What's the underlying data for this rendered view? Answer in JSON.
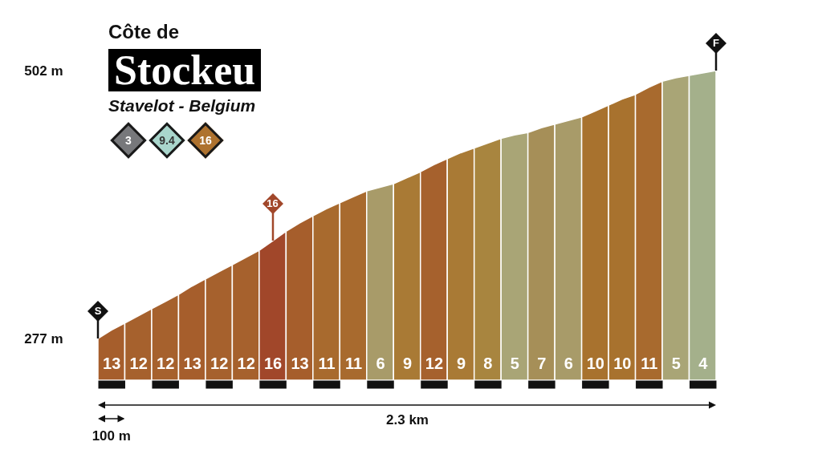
{
  "chart_data": {
    "type": "area",
    "title": "Côte de\nStockeu",
    "subtitle": "Stavelot - Belgium",
    "xlabel": "2.3 km",
    "categories": [
      null,
      "13",
      null,
      "12",
      null,
      "12",
      null,
      "13",
      null,
      "12",
      null,
      "12",
      null,
      "16",
      null,
      "13",
      null,
      "11",
      null,
      "11",
      null,
      "6",
      null,
      "9",
      null,
      "12",
      null,
      "9",
      null,
      "8",
      null,
      "5",
      null,
      "7",
      null,
      "6",
      null,
      "10",
      null,
      "10",
      null,
      "11",
      null,
      "5",
      null,
      "4",
      null
    ],
    "ylim": [
      242,
      502
    ],
    "yticks": [
      {
        "value": 277,
        "label": "277 m"
      },
      {
        "value": 502,
        "label": "502 m"
      }
    ],
    "series": [
      {
        "color": "#a65e2c",
        "values": [
          277,
          284,
          290,
          null,
          null,
          null,
          null,
          null,
          null,
          null,
          null,
          null,
          null,
          null,
          null,
          null,
          null,
          null,
          null,
          null,
          null,
          null,
          null,
          null,
          null,
          null,
          null,
          null,
          null,
          null,
          null,
          null,
          null,
          null,
          null,
          null,
          null,
          null,
          null,
          null,
          null,
          null,
          null,
          null,
          null,
          null,
          null
        ],
        "value_labels": [
          "S",
          null,
          null,
          null,
          null,
          null,
          null,
          null,
          null,
          null,
          null,
          null,
          null,
          null,
          null,
          null,
          null,
          null,
          null,
          null,
          null,
          null,
          null,
          null,
          null,
          null,
          null,
          null,
          null,
          null,
          null,
          null,
          null,
          null,
          null,
          null,
          null,
          null,
          null,
          null,
          null,
          null,
          null,
          null,
          null,
          null,
          null
        ]
      },
      {
        "color": "#a6612d",
        "values": [
          null,
          null,
          290,
          296,
          302,
          null,
          null,
          null,
          null,
          null,
          null,
          null,
          null,
          null,
          null,
          null,
          null,
          null,
          null,
          null,
          null,
          null,
          null,
          null,
          null,
          null,
          null,
          null,
          null,
          null,
          null,
          null,
          null,
          null,
          null,
          null,
          null,
          null,
          null,
          null,
          null,
          null,
          null,
          null,
          null,
          null,
          null
        ]
      },
      {
        "color": "#a6612d",
        "values": [
          null,
          null,
          null,
          null,
          302,
          308,
          314,
          null,
          null,
          null,
          null,
          null,
          null,
          null,
          null,
          null,
          null,
          null,
          null,
          null,
          null,
          null,
          null,
          null,
          null,
          null,
          null,
          null,
          null,
          null,
          null,
          null,
          null,
          null,
          null,
          null,
          null,
          null,
          null,
          null,
          null,
          null,
          null,
          null,
          null,
          null,
          null
        ]
      },
      {
        "color": "#a65e2c",
        "values": [
          null,
          null,
          null,
          null,
          null,
          null,
          314,
          321,
          327,
          null,
          null,
          null,
          null,
          null,
          null,
          null,
          null,
          null,
          null,
          null,
          null,
          null,
          null,
          null,
          null,
          null,
          null,
          null,
          null,
          null,
          null,
          null,
          null,
          null,
          null,
          null,
          null,
          null,
          null,
          null,
          null,
          null,
          null,
          null,
          null,
          null,
          null
        ]
      },
      {
        "color": "#a6612d",
        "values": [
          null,
          null,
          null,
          null,
          null,
          null,
          null,
          null,
          327,
          333,
          339,
          null,
          null,
          null,
          null,
          null,
          null,
          null,
          null,
          null,
          null,
          null,
          null,
          null,
          null,
          null,
          null,
          null,
          null,
          null,
          null,
          null,
          null,
          null,
          null,
          null,
          null,
          null,
          null,
          null,
          null,
          null,
          null,
          null,
          null,
          null,
          null
        ]
      },
      {
        "color": "#a6612d",
        "values": [
          null,
          null,
          null,
          null,
          null,
          null,
          null,
          null,
          null,
          null,
          339,
          345,
          351,
          null,
          null,
          null,
          null,
          null,
          null,
          null,
          null,
          null,
          null,
          null,
          null,
          null,
          null,
          null,
          null,
          null,
          null,
          null,
          null,
          null,
          null,
          null,
          null,
          null,
          null,
          null,
          null,
          null,
          null,
          null,
          null,
          null,
          null
        ]
      },
      {
        "color": "#a1472a",
        "values": [
          null,
          null,
          null,
          null,
          null,
          null,
          null,
          null,
          null,
          null,
          null,
          null,
          351,
          359,
          367,
          null,
          null,
          null,
          null,
          null,
          null,
          null,
          null,
          null,
          null,
          null,
          null,
          null,
          null,
          null,
          null,
          null,
          null,
          null,
          null,
          null,
          null,
          null,
          null,
          null,
          null,
          null,
          null,
          null,
          null,
          null,
          null
        ]
      },
      {
        "color": "#a65e2c",
        "values": [
          null,
          null,
          null,
          null,
          null,
          null,
          null,
          null,
          null,
          null,
          null,
          null,
          null,
          null,
          367,
          374,
          380,
          null,
          null,
          null,
          null,
          null,
          null,
          null,
          null,
          null,
          null,
          null,
          null,
          null,
          null,
          null,
          null,
          null,
          null,
          null,
          null,
          null,
          null,
          null,
          null,
          null,
          null,
          null,
          null,
          null,
          null
        ]
      },
      {
        "color": "#a86a2e",
        "values": [
          null,
          null,
          null,
          null,
          null,
          null,
          null,
          null,
          null,
          null,
          null,
          null,
          null,
          null,
          null,
          null,
          380,
          386,
          391,
          null,
          null,
          null,
          null,
          null,
          null,
          null,
          null,
          null,
          null,
          null,
          null,
          null,
          null,
          null,
          null,
          null,
          null,
          null,
          null,
          null,
          null,
          null,
          null,
          null,
          null,
          null,
          null
        ]
      },
      {
        "color": "#a86a2e",
        "values": [
          null,
          null,
          null,
          null,
          null,
          null,
          null,
          null,
          null,
          null,
          null,
          null,
          null,
          null,
          null,
          null,
          null,
          null,
          391,
          396,
          401,
          null,
          null,
          null,
          null,
          null,
          null,
          null,
          null,
          null,
          null,
          null,
          null,
          null,
          null,
          null,
          null,
          null,
          null,
          null,
          null,
          null,
          null,
          null,
          null,
          null,
          null
        ]
      },
      {
        "color": "#a89b69",
        "values": [
          null,
          null,
          null,
          null,
          null,
          null,
          null,
          null,
          null,
          null,
          null,
          null,
          null,
          null,
          null,
          null,
          null,
          null,
          null,
          null,
          401,
          404,
          407,
          null,
          null,
          null,
          null,
          null,
          null,
          null,
          null,
          null,
          null,
          null,
          null,
          null,
          null,
          null,
          null,
          null,
          null,
          null,
          null,
          null,
          null,
          null,
          null
        ]
      },
      {
        "color": "#a97a35",
        "values": [
          null,
          null,
          null,
          null,
          null,
          null,
          null,
          null,
          null,
          null,
          null,
          null,
          null,
          null,
          null,
          null,
          null,
          null,
          null,
          null,
          null,
          null,
          407,
          412,
          417,
          null,
          null,
          null,
          null,
          null,
          null,
          null,
          null,
          null,
          null,
          null,
          null,
          null,
          null,
          null,
          null,
          null,
          null,
          null,
          null,
          null,
          null
        ]
      },
      {
        "color": "#a6612d",
        "values": [
          null,
          null,
          null,
          null,
          null,
          null,
          null,
          null,
          null,
          null,
          null,
          null,
          null,
          null,
          null,
          null,
          null,
          null,
          null,
          null,
          null,
          null,
          null,
          null,
          417,
          423,
          428,
          null,
          null,
          null,
          null,
          null,
          null,
          null,
          null,
          null,
          null,
          null,
          null,
          null,
          null,
          null,
          null,
          null,
          null,
          null,
          null
        ]
      },
      {
        "color": "#a97a35",
        "values": [
          null,
          null,
          null,
          null,
          null,
          null,
          null,
          null,
          null,
          null,
          null,
          null,
          null,
          null,
          null,
          null,
          null,
          null,
          null,
          null,
          null,
          null,
          null,
          null,
          null,
          null,
          428,
          433,
          437,
          null,
          null,
          null,
          null,
          null,
          null,
          null,
          null,
          null,
          null,
          null,
          null,
          null,
          null,
          null,
          null,
          null,
          null
        ]
      },
      {
        "color": "#a8853f",
        "values": [
          null,
          null,
          null,
          null,
          null,
          null,
          null,
          null,
          null,
          null,
          null,
          null,
          null,
          null,
          null,
          null,
          null,
          null,
          null,
          null,
          null,
          null,
          null,
          null,
          null,
          null,
          null,
          null,
          437,
          441,
          445,
          null,
          null,
          null,
          null,
          null,
          null,
          null,
          null,
          null,
          null,
          null,
          null,
          null,
          null,
          null,
          null
        ]
      },
      {
        "color": "#a9a576",
        "values": [
          null,
          null,
          null,
          null,
          null,
          null,
          null,
          null,
          null,
          null,
          null,
          null,
          null,
          null,
          null,
          null,
          null,
          null,
          null,
          null,
          null,
          null,
          null,
          null,
          null,
          null,
          null,
          null,
          null,
          null,
          445,
          448,
          450,
          null,
          null,
          null,
          null,
          null,
          null,
          null,
          null,
          null,
          null,
          null,
          null,
          null,
          null
        ]
      },
      {
        "color": "#a68f58",
        "values": [
          null,
          null,
          null,
          null,
          null,
          null,
          null,
          null,
          null,
          null,
          null,
          null,
          null,
          null,
          null,
          null,
          null,
          null,
          null,
          null,
          null,
          null,
          null,
          null,
          null,
          null,
          null,
          null,
          null,
          null,
          null,
          null,
          450,
          454,
          457,
          null,
          null,
          null,
          null,
          null,
          null,
          null,
          null,
          null,
          null,
          null,
          null
        ]
      },
      {
        "color": "#a89b69",
        "values": [
          null,
          null,
          null,
          null,
          null,
          null,
          null,
          null,
          null,
          null,
          null,
          null,
          null,
          null,
          null,
          null,
          null,
          null,
          null,
          null,
          null,
          null,
          null,
          null,
          null,
          null,
          null,
          null,
          null,
          null,
          null,
          null,
          null,
          null,
          457,
          460,
          463,
          null,
          null,
          null,
          null,
          null,
          null,
          null,
          null,
          null,
          null
        ]
      },
      {
        "color": "#a8722e",
        "values": [
          null,
          null,
          null,
          null,
          null,
          null,
          null,
          null,
          null,
          null,
          null,
          null,
          null,
          null,
          null,
          null,
          null,
          null,
          null,
          null,
          null,
          null,
          null,
          null,
          null,
          null,
          null,
          null,
          null,
          null,
          null,
          null,
          null,
          null,
          null,
          null,
          463,
          468,
          473,
          null,
          null,
          null,
          null,
          null,
          null,
          null,
          null
        ]
      },
      {
        "color": "#a8722e",
        "values": [
          null,
          null,
          null,
          null,
          null,
          null,
          null,
          null,
          null,
          null,
          null,
          null,
          null,
          null,
          null,
          null,
          null,
          null,
          null,
          null,
          null,
          null,
          null,
          null,
          null,
          null,
          null,
          null,
          null,
          null,
          null,
          null,
          null,
          null,
          null,
          null,
          null,
          null,
          473,
          478,
          482,
          null,
          null,
          null,
          null,
          null,
          null
        ]
      },
      {
        "color": "#a86a2e",
        "values": [
          null,
          null,
          null,
          null,
          null,
          null,
          null,
          null,
          null,
          null,
          null,
          null,
          null,
          null,
          null,
          null,
          null,
          null,
          null,
          null,
          null,
          null,
          null,
          null,
          null,
          null,
          null,
          null,
          null,
          null,
          null,
          null,
          null,
          null,
          null,
          null,
          null,
          null,
          null,
          null,
          482,
          488,
          493,
          null,
          null,
          null,
          null
        ]
      },
      {
        "color": "#a9a576",
        "values": [
          null,
          null,
          null,
          null,
          null,
          null,
          null,
          null,
          null,
          null,
          null,
          null,
          null,
          null,
          null,
          null,
          null,
          null,
          null,
          null,
          null,
          null,
          null,
          null,
          null,
          null,
          null,
          null,
          null,
          null,
          null,
          null,
          null,
          null,
          null,
          null,
          null,
          null,
          null,
          null,
          null,
          null,
          493,
          496,
          498,
          null,
          null
        ]
      },
      {
        "color": "#a4b08b",
        "values": [
          null,
          null,
          null,
          null,
          null,
          null,
          null,
          null,
          null,
          null,
          null,
          null,
          null,
          null,
          null,
          null,
          null,
          null,
          null,
          null,
          null,
          null,
          null,
          null,
          null,
          null,
          null,
          null,
          null,
          null,
          null,
          null,
          null,
          null,
          null,
          null,
          null,
          null,
          null,
          null,
          null,
          null,
          null,
          null,
          498,
          500,
          502
        ],
        "value_labels": [
          null,
          null,
          null,
          null,
          null,
          null,
          null,
          null,
          null,
          null,
          null,
          null,
          null,
          null,
          null,
          null,
          null,
          null,
          null,
          null,
          null,
          null,
          null,
          null,
          null,
          null,
          null,
          null,
          null,
          null,
          null,
          null,
          null,
          null,
          null,
          null,
          null,
          null,
          null,
          null,
          null,
          null,
          null,
          null,
          null,
          null,
          "F"
        ]
      }
    ],
    "annotations": [
      "3",
      "9.4",
      "16",
      {
        "text": "16",
        "x": "16",
        "y": 390
      },
      {
        "text": "100 m"
      }
    ]
  }
}
